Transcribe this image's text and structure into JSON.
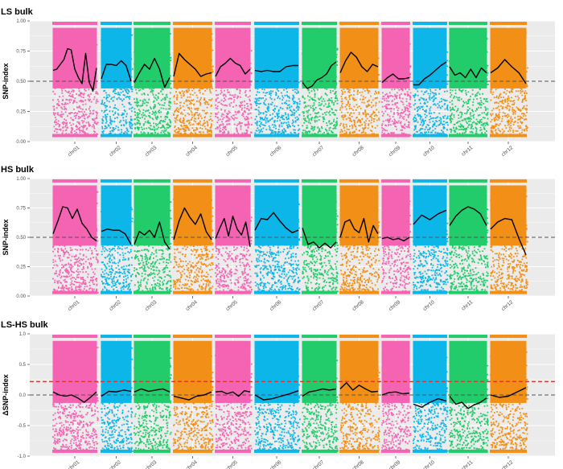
{
  "chart_data": [
    {
      "type": "scatter",
      "title": "LS bulk",
      "ylabel": "SNP-index",
      "xlabel": "",
      "ylim": [
        0,
        1
      ],
      "yticks": [
        0,
        0.25,
        0.5,
        0.75,
        1
      ],
      "ytick_labels": [
        "0.00",
        "0.25",
        "0.50",
        "0.75",
        "1.00"
      ],
      "categories": [
        "chr01",
        "chr02",
        "chr03",
        "chr04",
        "chr05",
        "chr06",
        "chr07",
        "chr08",
        "chr09",
        "chr10",
        "chr11",
        "chr12"
      ],
      "colors": [
        "#F564B3",
        "#0CB6E8",
        "#22CC6A",
        "#F28F16",
        "#F564B3",
        "#0CB6E8",
        "#22CC6A",
        "#F28F16",
        "#F564B3",
        "#0CB6E8",
        "#22CC6A",
        "#F28F16"
      ],
      "point_range": {
        "lower": 0.05,
        "upper": 0.98
      },
      "reference_lines": [
        {
          "y": 0.5,
          "color": "#555555",
          "style": "dashed"
        }
      ],
      "series": [
        {
          "values": [
            [
              0.59,
              0.6,
              0.64,
              0.68,
              0.77,
              0.76,
              0.6,
              0.53,
              0.48,
              0.73,
              0.49,
              0.42,
              0.61
            ],
            [
              0.52,
              0.64,
              0.64,
              0.63,
              0.67,
              0.63,
              0.5
            ],
            [
              0.49,
              0.57,
              0.64,
              0.6,
              0.69,
              0.6,
              0.45,
              0.53
            ],
            [
              0.54,
              0.73,
              0.68,
              0.64,
              0.6,
              0.54,
              0.56,
              0.57
            ],
            [
              0.54,
              0.62,
              0.65,
              0.69,
              0.65,
              0.63,
              0.56,
              0.6
            ],
            [
              0.59,
              0.58,
              0.59,
              0.58,
              0.58,
              0.62,
              0.63,
              0.63
            ],
            [
              0.49,
              0.44,
              0.46,
              0.51,
              0.53,
              0.56,
              0.63,
              0.66
            ],
            [
              0.57,
              0.67,
              0.74,
              0.7,
              0.62,
              0.58,
              0.64,
              0.62
            ],
            [
              0.49,
              0.53,
              0.56,
              0.52,
              0.52,
              0.53
            ],
            [
              0.47,
              0.47,
              0.52,
              0.55,
              0.59,
              0.63,
              0.66
            ],
            [
              0.62,
              0.55,
              0.57,
              0.53,
              0.6,
              0.53,
              0.61,
              0.57
            ],
            [
              0.57,
              0.61,
              0.68,
              0.62,
              0.57,
              0.48
            ]
          ]
        }
      ]
    },
    {
      "type": "scatter",
      "title": "HS bulk",
      "ylabel": "SNP-index",
      "xlabel": "",
      "ylim": [
        0,
        1
      ],
      "yticks": [
        0,
        0.25,
        0.5,
        0.75,
        1
      ],
      "ytick_labels": [
        "0.00",
        "0.25",
        "0.50",
        "0.75",
        "1.00"
      ],
      "categories": [
        "chr01",
        "chr02",
        "chr03",
        "chr04",
        "chr05",
        "chr06",
        "chr07",
        "chr08",
        "chr09",
        "chr10",
        "chr11",
        "chr12"
      ],
      "colors": [
        "#F564B3",
        "#0CB6E8",
        "#22CC6A",
        "#F28F16",
        "#F564B3",
        "#0CB6E8",
        "#22CC6A",
        "#F28F16",
        "#F564B3",
        "#0CB6E8",
        "#22CC6A",
        "#F28F16"
      ],
      "point_range": {
        "lower": 0.03,
        "upper": 0.98
      },
      "reference_lines": [
        {
          "y": 0.5,
          "color": "#555555",
          "style": "dashed"
        }
      ],
      "series": [
        {
          "values": [
            [
              0.53,
              0.64,
              0.76,
              0.75,
              0.66,
              0.74,
              0.62,
              0.57,
              0.5,
              0.47
            ],
            [
              0.55,
              0.57,
              0.56,
              0.56,
              0.53,
              0.44
            ],
            [
              0.44,
              0.55,
              0.52,
              0.56,
              0.5,
              0.63,
              0.46,
              0.4
            ],
            [
              0.48,
              0.64,
              0.75,
              0.67,
              0.61,
              0.7,
              0.55,
              0.48
            ],
            [
              0.49,
              0.58,
              0.66,
              0.51,
              0.68,
              0.57,
              0.52,
              0.63,
              0.42
            ],
            [
              0.56,
              0.66,
              0.65,
              0.71,
              0.64,
              0.58,
              0.54,
              0.56
            ],
            [
              0.58,
              0.44,
              0.46,
              0.41,
              0.45,
              0.41,
              0.46
            ],
            [
              0.5,
              0.63,
              0.65,
              0.57,
              0.54,
              0.66,
              0.46,
              0.6,
              0.53
            ],
            [
              0.49,
              0.5,
              0.48,
              0.49,
              0.47,
              0.5
            ],
            [
              0.61,
              0.69,
              0.65,
              0.7,
              0.73
            ],
            [
              0.6,
              0.68,
              0.73,
              0.76,
              0.74,
              0.7,
              0.6
            ],
            [
              0.57,
              0.63,
              0.66,
              0.65,
              0.49,
              0.35
            ]
          ]
        }
      ]
    },
    {
      "type": "scatter",
      "title": "LS-HS bulk",
      "ylabel": "ΔSNP-index",
      "xlabel": "",
      "ylim": [
        -1,
        1
      ],
      "yticks": [
        -1,
        -0.5,
        0,
        0.5,
        1
      ],
      "ytick_labels": [
        "-1.0",
        "-0.5",
        "0.0",
        "0.5",
        "1.0"
      ],
      "categories": [
        "chr01",
        "chr02",
        "chr03",
        "chr04",
        "chr05",
        "chr06",
        "chr07",
        "chr08",
        "chr09",
        "chr10",
        "chr11",
        "chr12"
      ],
      "colors": [
        "#F564B3",
        "#0CB6E8",
        "#22CC6A",
        "#F28F16",
        "#F564B3",
        "#0CB6E8",
        "#22CC6A",
        "#F28F16",
        "#F564B3",
        "#0CB6E8",
        "#22CC6A",
        "#F28F16"
      ],
      "point_range": {
        "lower": -0.92,
        "upper": 0.96
      },
      "reference_lines": [
        {
          "y": 0.22,
          "color": "#E8312B",
          "style": "dashed"
        },
        {
          "y": 0.0,
          "color": "#555555",
          "style": "dashed"
        }
      ],
      "series": [
        {
          "values": [
            [
              0.05,
              0.0,
              -0.02,
              0.0,
              -0.05,
              -0.12,
              -0.04,
              0.05
            ],
            [
              -0.02,
              0.06,
              0.05,
              0.08,
              0.06
            ],
            [
              0.05,
              0.1,
              0.06,
              0.08,
              0.1,
              0.05
            ],
            [
              -0.02,
              -0.05,
              -0.08,
              -0.02,
              0.0,
              0.05
            ],
            [
              0.05,
              0.06,
              0.02,
              0.05,
              -0.02,
              0.07,
              0.05
            ],
            [
              0.0,
              -0.08,
              -0.06,
              -0.02,
              0.02,
              0.07
            ],
            [
              -0.02,
              0.05,
              0.07,
              0.1,
              0.08,
              0.1
            ],
            [
              0.1,
              0.2,
              0.08,
              0.16,
              0.1,
              0.05,
              0.06
            ],
            [
              0.0,
              0.04,
              0.05,
              0.02,
              0.03
            ],
            [
              -0.15,
              -0.2,
              -0.12,
              -0.06,
              -0.1
            ],
            [
              -0.02,
              -0.15,
              -0.12,
              -0.22,
              -0.16,
              -0.12,
              -0.05
            ],
            [
              0.0,
              -0.04,
              -0.02,
              0.05,
              0.12
            ]
          ]
        }
      ]
    }
  ]
}
